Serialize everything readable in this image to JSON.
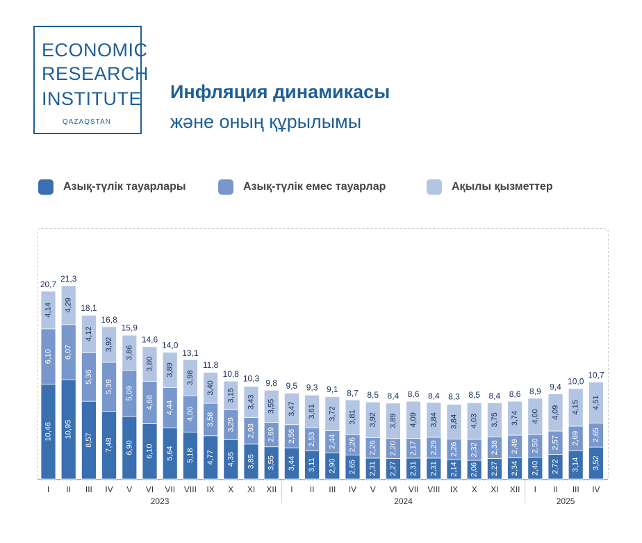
{
  "logo": {
    "line1": "ECONOMIC",
    "line2": "RESEARCH",
    "line3": "INSTITUTE",
    "sub": "QAZAQSTAN"
  },
  "header": {
    "title": "Инфляция динамикасы",
    "subtitle": "және оның құрылымы"
  },
  "colors": {
    "food": "#3a6fb0",
    "nonfood": "#7897cc",
    "services": "#b3c5e2",
    "text_dark": "#1a2f5a",
    "brand": "#1f5f97"
  },
  "chart_data": {
    "type": "bar",
    "stacked": true,
    "categories": [
      "I",
      "II",
      "III",
      "IV",
      "V",
      "VI",
      "VII",
      "VIII",
      "IX",
      "X",
      "XI",
      "XII",
      "I",
      "II",
      "III",
      "IV",
      "V",
      "VI",
      "VII",
      "VIII",
      "IX",
      "X",
      "XI",
      "XII",
      "I",
      "II",
      "III",
      "IV"
    ],
    "groups": [
      {
        "label": "2023",
        "start": 0,
        "count": 12
      },
      {
        "label": "2024",
        "start": 12,
        "count": 12
      },
      {
        "label": "2025",
        "start": 24,
        "count": 4
      }
    ],
    "series": [
      {
        "name": "Азық-түлік тауарлары",
        "color": "#3a6fb0",
        "values": [
          10.46,
          10.95,
          8.57,
          7.48,
          6.9,
          6.1,
          5.64,
          5.18,
          4.77,
          4.35,
          3.85,
          3.55,
          3.44,
          3.11,
          2.9,
          2.65,
          2.31,
          2.27,
          2.31,
          2.31,
          2.14,
          2.06,
          2.27,
          2.34,
          2.4,
          2.72,
          3.14,
          3.52
        ],
        "labels": [
          "10,46",
          "10,95",
          "8,57",
          "7,48",
          "6,90",
          "6,10",
          "5,64",
          "5,18",
          "4,77",
          "4,35",
          "3,85",
          "3,55",
          "3,44",
          "3,11",
          "2,90",
          "2,65",
          "2,31",
          "2,27",
          "2,31",
          "2,31",
          "2,14",
          "2,06",
          "2,27",
          "2,34",
          "2,40",
          "2,72",
          "3,14",
          "3,52"
        ]
      },
      {
        "name": "Азық-түлік емес тауарлар",
        "color": "#7897cc",
        "values": [
          6.1,
          6.07,
          5.36,
          5.39,
          5.09,
          4.68,
          4.44,
          4.0,
          3.58,
          3.29,
          2.93,
          2.69,
          2.56,
          2.53,
          2.44,
          2.26,
          2.26,
          2.2,
          2.17,
          2.29,
          2.26,
          2.32,
          2.38,
          2.49,
          2.5,
          2.57,
          2.69,
          2.65
        ],
        "labels": [
          "6,10",
          "6,07",
          "5,36",
          "5,39",
          "5,09",
          "4,68",
          "4,44",
          "4,00",
          "3,58",
          "3,29",
          "2,93",
          "2,69",
          "2,56",
          "2,53",
          "2,44",
          "2,26",
          "2,26",
          "2,20",
          "2,17",
          "2,29",
          "2,26",
          "2,32",
          "2,38",
          "2,49",
          "2,50",
          "2,57",
          "2,69",
          "2,65"
        ]
      },
      {
        "name": "Ақылы қызметтер",
        "color": "#b3c5e2",
        "values": [
          4.14,
          4.29,
          4.12,
          3.92,
          3.86,
          3.8,
          3.89,
          3.98,
          3.4,
          3.15,
          3.43,
          3.55,
          3.47,
          3.61,
          3.72,
          3.81,
          3.92,
          3.89,
          4.09,
          3.84,
          3.84,
          4.03,
          3.75,
          3.74,
          4.0,
          4.09,
          4.15,
          4.51
        ],
        "labels": [
          "4,14",
          "4,29",
          "4,12",
          "3,92",
          "3,86",
          "3,80",
          "3,89",
          "3,98",
          "3,40",
          "3,15",
          "3,43",
          "3,55",
          "3,47",
          "3,61",
          "3,72",
          "3,81",
          "3,92",
          "3,89",
          "4,09",
          "3,84",
          "3,84",
          "4,03",
          "3,75",
          "3,74",
          "4,00",
          "4,09",
          "4,15",
          "4,51"
        ]
      }
    ],
    "totals": [
      20.7,
      21.3,
      18.1,
      16.8,
      15.9,
      14.6,
      14.0,
      13.1,
      11.8,
      10.8,
      10.3,
      9.8,
      9.5,
      9.3,
      9.1,
      8.7,
      8.5,
      8.4,
      8.6,
      8.4,
      8.3,
      8.5,
      8.4,
      8.6,
      8.9,
      9.4,
      10.0,
      10.7
    ],
    "total_labels": [
      "20,7",
      "21,3",
      "18,1",
      "16,8",
      "15,9",
      "14,6",
      "14,0",
      "13,1",
      "11,8",
      "10,8",
      "10,3",
      "9,8",
      "9,5",
      "9,3",
      "9,1",
      "8,7",
      "8,5",
      "8,4",
      "8,6",
      "8,4",
      "8,3",
      "8,5",
      "8,4",
      "8,6",
      "8,9",
      "9,4",
      "10,0",
      "10,7"
    ],
    "legend_position": "top",
    "grid": false
  }
}
